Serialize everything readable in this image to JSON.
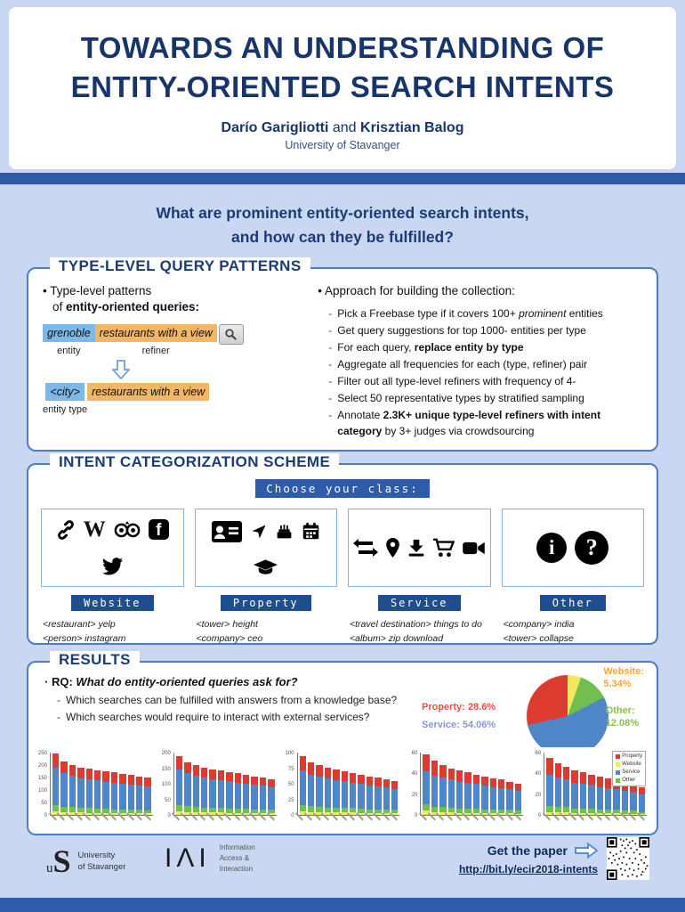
{
  "header": {
    "title1": "TOWARDS AN UNDERSTANDING OF",
    "title2": "ENTITY-ORIENTED SEARCH INTENTS",
    "author1": "Darío Garigliotti",
    "sep": " and ",
    "author2": "Krisztian Balog",
    "affiliation": "University of Stavanger"
  },
  "question": {
    "line1": "What are prominent entity-oriented search intents,",
    "line2": "and how can they be fulfilled?"
  },
  "patterns": {
    "title": "TYPE-LEVEL QUERY PATTERNS",
    "left": {
      "bullet1": "Type-level patterns",
      "bullet1b_pre": "of ",
      "bullet1b_bold": "entity-oriented queries:",
      "query_entity": "grenoble",
      "query_refiner": "restaurants with a view",
      "label_entity": "entity",
      "label_refiner": "refiner",
      "typed_entity": "<city>",
      "typed_refiner": "restaurants with a view",
      "label_entity_type": "entity type"
    },
    "right": {
      "bullet": "Approach for building the collection:",
      "items": [
        {
          "pre": "Pick a Freebase type if it covers 100+ ",
          "it": "prominent",
          "bold": "",
          "post": " entities"
        },
        {
          "pre": "Get query suggestions for top 1000- entities per type",
          "it": "",
          "bold": "",
          "post": ""
        },
        {
          "pre": "For each query, ",
          "it": "",
          "bold": "replace entity by type",
          "post": ""
        },
        {
          "pre": "Aggregate all frequencies for each (type, refiner) pair",
          "it": "",
          "bold": "",
          "post": ""
        },
        {
          "pre": "Filter out all type-level refiners with frequency of 4-",
          "it": "",
          "bold": "",
          "post": ""
        },
        {
          "pre": "Select 50 representative types by stratified sampling",
          "it": "",
          "bold": "",
          "post": ""
        },
        {
          "pre": "Annotate ",
          "it": "",
          "bold": "2.3K+ unique type-level refiners with intent category",
          "post": " by 3+ judges via crowdsourcing"
        }
      ]
    }
  },
  "intent": {
    "title": "INTENT CATEGORIZATION SCHEME",
    "banner": "Choose your class:",
    "categories": [
      {
        "label": "Website",
        "icons": [
          "link-icon",
          "wikipedia-icon",
          "tripadvisor-icon",
          "facebook-icon",
          "twitter-icon"
        ],
        "examples": [
          "<restaurant> yelp",
          "<person> instagram"
        ]
      },
      {
        "label": "Property",
        "icons": [
          "address-card-icon",
          "location-arrow-icon",
          "birthday-cake-icon",
          "calendar-icon",
          "graduation-cap-icon"
        ],
        "examples": [
          "<tower> height",
          "<company> ceo"
        ]
      },
      {
        "label": "Service",
        "icons": [
          "exchange-icon",
          "map-marker-icon",
          "download-icon",
          "shopping-cart-icon",
          "video-camera-icon"
        ],
        "examples": [
          "<travel destination> things to do",
          "<album> zip download"
        ]
      },
      {
        "label": "Other",
        "icons": [
          "info-circle-icon",
          "question-circle-icon"
        ],
        "examples": [
          "<company> india",
          "<tower> collapse"
        ]
      }
    ]
  },
  "results": {
    "title": "RESULTS",
    "rq_label": "RQ:",
    "rq_question": "What do entity-oriented queries ask for?",
    "sub_items": [
      "Which searches can be fulfilled with answers from a knowledge base?",
      "Which searches would require to interact with external services?"
    ]
  },
  "chart_data": {
    "pie": {
      "type": "pie",
      "order": [
        "Website",
        "Other",
        "Service",
        "Property"
      ],
      "values": {
        "Website": 5.34,
        "Other": 12.08,
        "Service": 54.06,
        "Property": 28.6
      },
      "colors": {
        "Website": "#f2e75d",
        "Other": "#71bf4e",
        "Service": "#4e86c8",
        "Property": "#dd3b2f"
      },
      "label_colors": {
        "Website": "#f5a73b",
        "Other": "#8ac04d",
        "Service": "#8b95d8",
        "Property": "#f04e42"
      }
    },
    "pie_labels": {
      "website_l1": "Website:",
      "website_l2": "5.34%",
      "other_l1": "Other:",
      "other_l2": "12.08%",
      "property": "Property: 28.6%",
      "service": "Service: 54.06%"
    },
    "colors": {
      "Website": "#f2e75d",
      "Other": "#71bf4e",
      "Service": "#4e86c8",
      "Property": "#dd3b2f"
    },
    "stack_order": [
      "Website",
      "Other",
      "Service",
      "Property"
    ],
    "legend": [
      "Property",
      "Website",
      "Service",
      "Other"
    ],
    "mini_charts": [
      {
        "type": "bar",
        "ymax": 250,
        "yticks": [
          0,
          50,
          100,
          150,
          200,
          250
        ],
        "bars": [
          [
            15,
            25,
            150,
            55
          ],
          [
            12,
            20,
            135,
            48
          ],
          [
            10,
            22,
            125,
            43
          ],
          [
            10,
            18,
            120,
            42
          ],
          [
            8,
            20,
            115,
            42
          ],
          [
            8,
            18,
            112,
            42
          ],
          [
            8,
            16,
            110,
            41
          ],
          [
            7,
            16,
            107,
            40
          ],
          [
            7,
            15,
            104,
            39
          ],
          [
            6,
            15,
            100,
            39
          ],
          [
            6,
            14,
            98,
            37
          ],
          [
            6,
            13,
            95,
            36
          ]
        ]
      },
      {
        "type": "bar",
        "ymax": 200,
        "yticks": [
          0,
          50,
          100,
          150,
          200
        ],
        "bars": [
          [
            12,
            20,
            115,
            43
          ],
          [
            10,
            18,
            105,
            37
          ],
          [
            9,
            16,
            100,
            35
          ],
          [
            9,
            15,
            95,
            33
          ],
          [
            8,
            15,
            92,
            32
          ],
          [
            8,
            14,
            90,
            31
          ],
          [
            7,
            14,
            87,
            30
          ],
          [
            7,
            13,
            84,
            29
          ],
          [
            6,
            13,
            81,
            28
          ],
          [
            6,
            12,
            78,
            27
          ],
          [
            6,
            12,
            75,
            26
          ],
          [
            5,
            11,
            72,
            25
          ]
        ]
      },
      {
        "type": "bar",
        "ymax": 100,
        "yticks": [
          0,
          25,
          50,
          75,
          100
        ],
        "bars": [
          [
            6,
            10,
            55,
            24
          ],
          [
            5,
            9,
            50,
            21
          ],
          [
            5,
            8,
            48,
            19
          ],
          [
            4,
            8,
            46,
            18
          ],
          [
            4,
            8,
            44,
            17
          ],
          [
            4,
            7,
            43,
            16
          ],
          [
            4,
            7,
            41,
            15
          ],
          [
            3,
            7,
            40,
            15
          ],
          [
            3,
            6,
            38,
            14
          ],
          [
            3,
            6,
            37,
            14
          ],
          [
            3,
            6,
            35,
            13
          ],
          [
            3,
            5,
            34,
            12
          ]
        ]
      },
      {
        "type": "bar",
        "ymax": 60,
        "yticks": [
          0,
          20,
          40,
          60
        ],
        "bars": [
          [
            4,
            6,
            32,
            16
          ],
          [
            3,
            5,
            30,
            14
          ],
          [
            3,
            5,
            28,
            12
          ],
          [
            3,
            4,
            27,
            11
          ],
          [
            2,
            4,
            26,
            11
          ],
          [
            2,
            4,
            25,
            10
          ],
          [
            2,
            4,
            24,
            9
          ],
          [
            2,
            3,
            23,
            9
          ],
          [
            2,
            3,
            22,
            8
          ],
          [
            2,
            3,
            21,
            8
          ],
          [
            2,
            3,
            20,
            7
          ],
          [
            1,
            3,
            19,
            7
          ]
        ]
      },
      {
        "type": "bar",
        "ymax": 60,
        "yticks": [
          0,
          20,
          40,
          60
        ],
        "bars": [
          [
            3,
            6,
            30,
            16
          ],
          [
            3,
            5,
            28,
            14
          ],
          [
            3,
            5,
            26,
            12
          ],
          [
            2,
            4,
            25,
            12
          ],
          [
            2,
            4,
            24,
            11
          ],
          [
            2,
            4,
            23,
            10
          ],
          [
            2,
            3,
            22,
            10
          ],
          [
            2,
            3,
            21,
            9
          ],
          [
            2,
            3,
            20,
            9
          ],
          [
            1,
            3,
            19,
            8
          ],
          [
            1,
            3,
            18,
            8
          ],
          [
            1,
            2,
            17,
            7
          ]
        ]
      }
    ]
  },
  "footer": {
    "uis_line1": "University",
    "uis_line2": "of Stavanger",
    "iai_letters": "IΛI",
    "iai_line1": "Information",
    "iai_line2": "Access &",
    "iai_line3": "Interaction",
    "cta": "Get the paper",
    "url": "http://bit.ly/ecir2018-intents"
  },
  "colors": {
    "background": "#c9d7f2",
    "band": "#2d5cab",
    "navy": "#1d3b74",
    "box_border": "#4a7cc7",
    "entity_chip": "#7cb9e8",
    "refiner_chip": "#f3b566"
  }
}
